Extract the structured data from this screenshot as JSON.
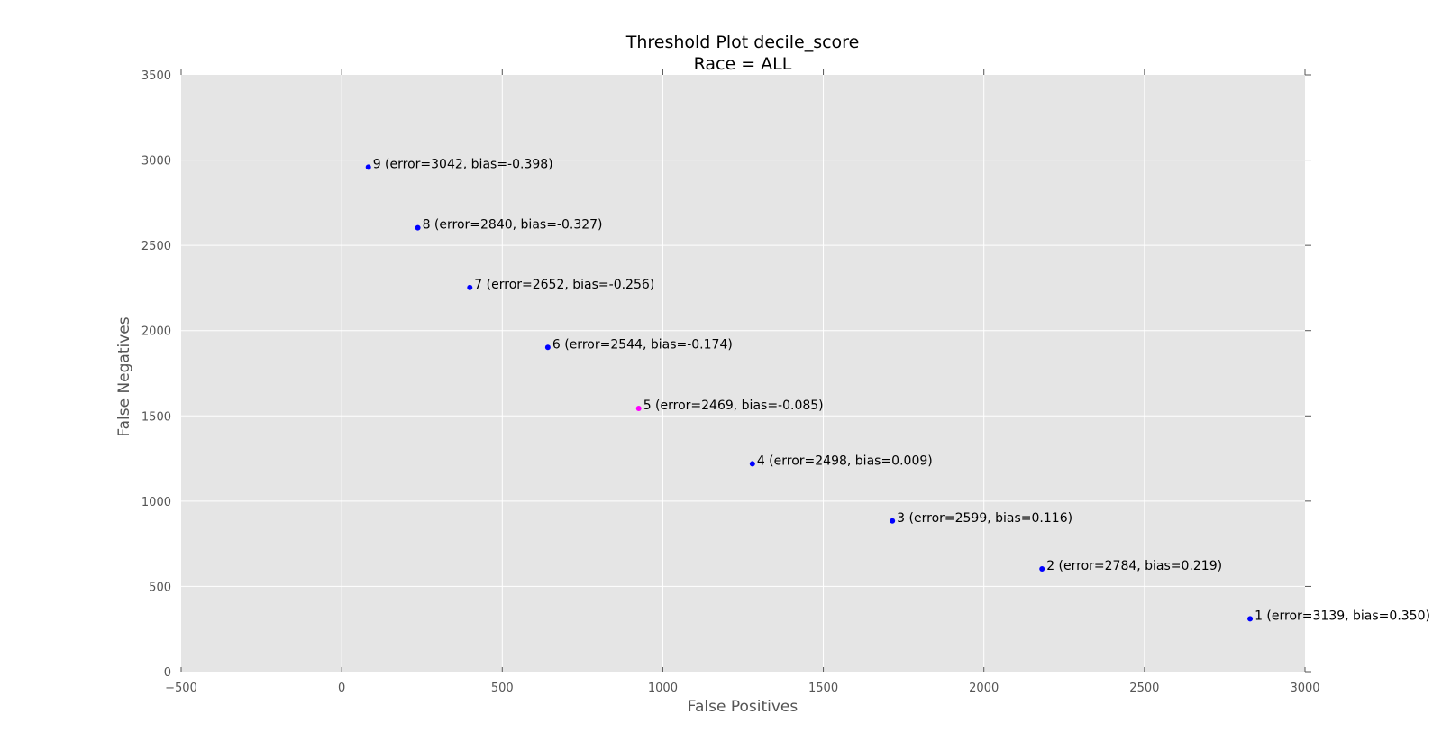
{
  "chart_data": {
    "type": "scatter",
    "title": "Threshold Plot decile_score",
    "subtitle": "Race = ALL",
    "xlabel": "False Positives",
    "ylabel": "False Negatives",
    "xlim": [
      -500,
      3000
    ],
    "ylim": [
      0,
      3500
    ],
    "xticks": [
      -500,
      0,
      500,
      1000,
      1500,
      2000,
      2500,
      3000
    ],
    "yticks": [
      0,
      500,
      1000,
      1500,
      2000,
      2500,
      3000,
      3500
    ],
    "xtick_labels": [
      "−500",
      "0",
      "500",
      "1000",
      "1500",
      "2000",
      "2500",
      "3000"
    ],
    "ytick_labels": [
      "0",
      "500",
      "1000",
      "1500",
      "2000",
      "2500",
      "3000",
      "3500"
    ],
    "grid": true,
    "background_color": "#e5e5e5",
    "grid_color": "#ffffff",
    "default_point_color": "#0000ff",
    "highlight_point_color": "#ff00ff",
    "points": [
      {
        "x": 83,
        "y": 2959,
        "label": "9 (error=3042, bias=-0.398)",
        "highlight": false
      },
      {
        "x": 237,
        "y": 2603,
        "label": "8 (error=2840, bias=-0.327)",
        "highlight": false
      },
      {
        "x": 399,
        "y": 2253,
        "label": "7 (error=2652, bias=-0.256)",
        "highlight": false
      },
      {
        "x": 642,
        "y": 1902,
        "label": "6 (error=2544, bias=-0.174)",
        "highlight": false
      },
      {
        "x": 925,
        "y": 1544,
        "label": "5 (error=2469, bias=-0.085)",
        "highlight": true
      },
      {
        "x": 1279,
        "y": 1219,
        "label": "4 (error=2498, bias=0.009)",
        "highlight": false
      },
      {
        "x": 1715,
        "y": 884,
        "label": "3 (error=2599, bias=0.116)",
        "highlight": false
      },
      {
        "x": 2181,
        "y": 603,
        "label": "2 (error=2784, bias=0.219)",
        "highlight": false
      },
      {
        "x": 2829,
        "y": 310,
        "label": "1 (error=3139, bias=0.350)",
        "highlight": false
      }
    ]
  }
}
